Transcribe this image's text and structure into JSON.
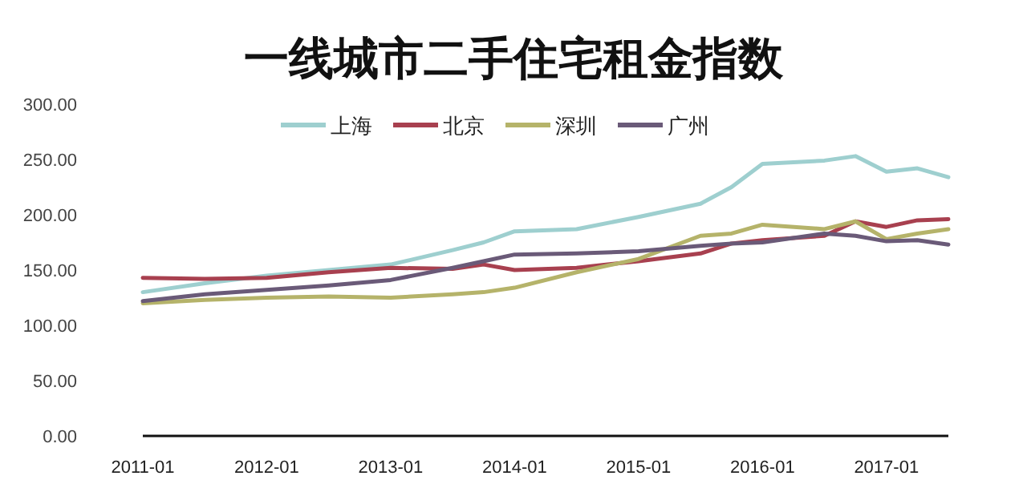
{
  "chart_data": {
    "type": "line",
    "title": "一线城市二手住宅租金指数",
    "x": [
      "2011-01",
      "2011-07",
      "2012-01",
      "2012-07",
      "2013-01",
      "2013-07",
      "2013-10",
      "2014-01",
      "2014-07",
      "2015-01",
      "2015-07",
      "2015-10",
      "2016-01",
      "2016-07",
      "2016-10",
      "2017-01",
      "2017-04",
      "2017-07"
    ],
    "series": [
      {
        "name": "上海",
        "color": "#9ecfcf",
        "values": [
          130,
          138,
          145,
          150,
          155,
          168,
          175,
          185,
          187,
          198,
          210,
          225,
          246,
          249,
          253,
          239,
          242,
          234
        ]
      },
      {
        "name": "北京",
        "color": "#a8404f",
        "values": [
          143,
          142,
          143,
          148,
          152,
          151,
          155,
          150,
          152,
          158,
          165,
          174,
          177,
          181,
          194,
          189,
          195,
          196
        ]
      },
      {
        "name": "深圳",
        "color": "#b5b36a",
        "values": [
          120,
          123,
          125,
          126,
          125,
          128,
          130,
          134,
          148,
          160,
          181,
          183,
          191,
          187,
          194,
          178,
          183,
          187
        ]
      },
      {
        "name": "广州",
        "color": "#6a5a78",
        "values": [
          122,
          128,
          132,
          136,
          141,
          152,
          158,
          164,
          165,
          167,
          172,
          174,
          175,
          183,
          181,
          176,
          177,
          173
        ]
      }
    ],
    "xlim": [
      "2011-01",
      "2017-07"
    ],
    "xticks": [
      "2011-01",
      "2012-01",
      "2013-01",
      "2014-01",
      "2015-01",
      "2016-01",
      "2017-01"
    ],
    "ylim": [
      0,
      300
    ],
    "yticks": [
      {
        "value": 0,
        "label": "0.00"
      },
      {
        "value": 50,
        "label": "50.00"
      },
      {
        "value": 100,
        "label": "100.00"
      },
      {
        "value": 150,
        "label": "150.00"
      },
      {
        "value": 200,
        "label": "200.00"
      },
      {
        "value": 250,
        "label": "250.00"
      },
      {
        "value": 300,
        "label": "300.00"
      }
    ],
    "legend": "top"
  }
}
